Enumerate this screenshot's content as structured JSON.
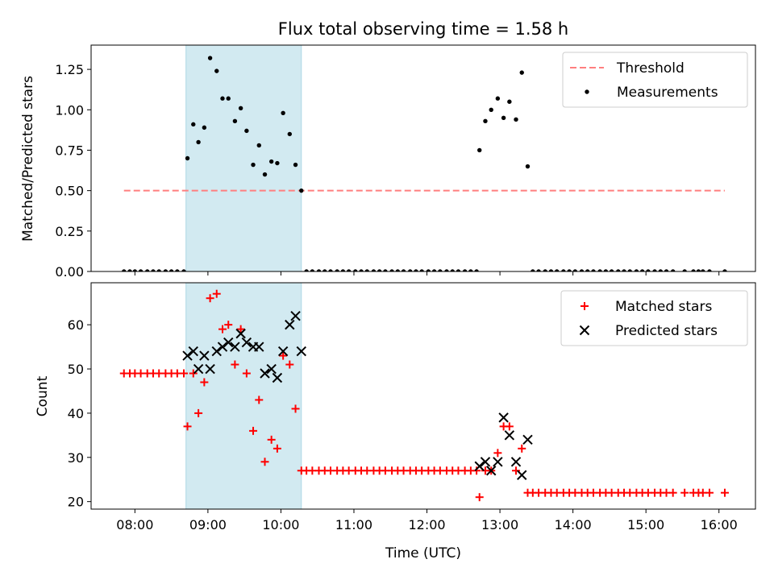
{
  "chart_data": {
    "title": "Flux total observing time = 1.58 h",
    "colors": {
      "threshold": "#ff7f7f",
      "shade": "#add8e6",
      "matched": "#ff0000",
      "predicted": "#000000",
      "measure": "#000000"
    },
    "shaded_interval_hours": [
      8.7,
      10.28
    ],
    "panels": [
      {
        "id": "ratio",
        "type": "scatter",
        "ylabel": "Matched/Predicted stars",
        "xlabel": "",
        "ylim": [
          0,
          1.4
        ],
        "yticks": [
          0.0,
          0.25,
          0.5,
          0.75,
          1.0,
          1.25
        ],
        "ytick_labels": [
          "0.00",
          "0.25",
          "0.50",
          "0.75",
          "1.00",
          "1.25"
        ],
        "legend": [
          "Threshold",
          "Measurements"
        ],
        "threshold": {
          "value": 0.5,
          "x_range": [
            7.85,
            16.08
          ]
        },
        "series": {
          "measurements": {
            "x": [
              7.85,
              7.93,
              8.0,
              8.08,
              8.17,
              8.25,
              8.33,
              8.42,
              8.5,
              8.58,
              8.67,
              8.72,
              8.8,
              8.87,
              8.95,
              9.03,
              9.12,
              9.2,
              9.28,
              9.37,
              9.45,
              9.53,
              9.62,
              9.7,
              9.78,
              9.87,
              9.95,
              10.03,
              10.12,
              10.2,
              10.28,
              10.35,
              10.43,
              10.52,
              10.6,
              10.68,
              10.77,
              10.85,
              10.93,
              11.02,
              11.1,
              11.18,
              11.27,
              11.35,
              11.43,
              11.52,
              11.6,
              11.68,
              11.77,
              11.85,
              11.93,
              12.02,
              12.1,
              12.18,
              12.27,
              12.35,
              12.43,
              12.52,
              12.6,
              12.68,
              12.72,
              12.8,
              12.88,
              12.97,
              13.05,
              13.13,
              13.22,
              13.3,
              13.38,
              13.45,
              13.53,
              13.62,
              13.7,
              13.78,
              13.87,
              13.95,
              14.03,
              14.12,
              14.2,
              14.28,
              14.37,
              14.45,
              14.53,
              14.62,
              14.7,
              14.78,
              14.87,
              14.95,
              15.03,
              15.12,
              15.2,
              15.28,
              15.37,
              15.53,
              15.65,
              15.72,
              15.78,
              15.87,
              16.08
            ],
            "y": [
              0,
              0,
              0,
              0,
              0,
              0,
              0,
              0,
              0,
              0,
              0,
              0.7,
              0.91,
              0.8,
              0.89,
              1.32,
              1.24,
              1.07,
              1.07,
              0.93,
              1.01,
              0.87,
              0.66,
              0.78,
              0.6,
              0.68,
              0.67,
              0.98,
              0.85,
              0.66,
              0.5,
              0,
              0,
              0,
              0,
              0,
              0,
              0,
              0,
              0,
              0,
              0,
              0,
              0,
              0,
              0,
              0,
              0,
              0,
              0,
              0,
              0,
              0,
              0,
              0,
              0,
              0,
              0,
              0,
              0,
              0.75,
              0.93,
              1.0,
              1.07,
              0.95,
              1.05,
              0.94,
              1.23,
              0.65,
              0,
              0,
              0,
              0,
              0,
              0,
              0,
              0,
              0,
              0,
              0,
              0,
              0,
              0,
              0,
              0,
              0,
              0,
              0,
              0,
              0,
              0,
              0,
              0,
              0,
              0,
              0,
              0,
              0,
              0
            ]
          }
        }
      },
      {
        "id": "counts",
        "type": "scatter",
        "ylabel": "Count",
        "xlabel": "Time (UTC)",
        "ylim": [
          18.3,
          69.5
        ],
        "yticks": [
          20,
          30,
          40,
          50,
          60
        ],
        "ytick_labels": [
          "20",
          "30",
          "40",
          "50",
          "60"
        ],
        "legend": [
          "Matched stars",
          "Predicted stars"
        ],
        "series": {
          "matched": {
            "x": [
              7.85,
              7.93,
              8.0,
              8.08,
              8.17,
              8.25,
              8.33,
              8.42,
              8.5,
              8.58,
              8.67,
              8.72,
              8.8,
              8.87,
              8.95,
              9.03,
              9.12,
              9.2,
              9.28,
              9.37,
              9.45,
              9.53,
              9.62,
              9.7,
              9.78,
              9.87,
              9.95,
              10.03,
              10.12,
              10.2,
              10.28,
              10.35,
              10.43,
              10.52,
              10.6,
              10.68,
              10.77,
              10.85,
              10.93,
              11.02,
              11.1,
              11.18,
              11.27,
              11.35,
              11.43,
              11.52,
              11.6,
              11.68,
              11.77,
              11.85,
              11.93,
              12.02,
              12.1,
              12.18,
              12.27,
              12.35,
              12.43,
              12.52,
              12.6,
              12.68,
              12.72,
              12.8,
              12.88,
              12.97,
              13.05,
              13.13,
              13.22,
              13.3,
              13.38,
              13.45,
              13.53,
              13.62,
              13.7,
              13.78,
              13.87,
              13.95,
              14.03,
              14.12,
              14.2,
              14.28,
              14.37,
              14.45,
              14.53,
              14.62,
              14.7,
              14.78,
              14.87,
              14.95,
              15.03,
              15.12,
              15.2,
              15.28,
              15.37,
              15.53,
              15.65,
              15.72,
              15.78,
              15.87,
              16.08
            ],
            "y": [
              49,
              49,
              49,
              49,
              49,
              49,
              49,
              49,
              49,
              49,
              49,
              37,
              49,
              40,
              47,
              66,
              67,
              59,
              60,
              51,
              59,
              49,
              36,
              43,
              29,
              34,
              32,
              53,
              51,
              41,
              27,
              27,
              27,
              27,
              27,
              27,
              27,
              27,
              27,
              27,
              27,
              27,
              27,
              27,
              27,
              27,
              27,
              27,
              27,
              27,
              27,
              27,
              27,
              27,
              27,
              27,
              27,
              27,
              27,
              27,
              21,
              27,
              27,
              31,
              37,
              37,
              27,
              32,
              22,
              22,
              22,
              22,
              22,
              22,
              22,
              22,
              22,
              22,
              22,
              22,
              22,
              22,
              22,
              22,
              22,
              22,
              22,
              22,
              22,
              22,
              22,
              22,
              22,
              22,
              22,
              22,
              22,
              22,
              22
            ]
          },
          "predicted": {
            "x": [
              8.72,
              8.8,
              8.87,
              8.95,
              9.03,
              9.12,
              9.2,
              9.28,
              9.37,
              9.45,
              9.53,
              9.62,
              9.7,
              9.78,
              9.87,
              9.95,
              10.03,
              10.12,
              10.2,
              10.28,
              12.72,
              12.8,
              12.88,
              12.97,
              13.05,
              13.13,
              13.22,
              13.3,
              13.38
            ],
            "y": [
              53,
              54,
              50,
              53,
              50,
              54,
              55,
              56,
              55,
              58,
              56,
              55,
              55,
              49,
              50,
              48,
              54,
              60,
              62,
              54,
              28,
              29,
              27,
              29,
              39,
              35,
              29,
              26,
              34
            ]
          }
        }
      }
    ],
    "xaxis": {
      "range_hours": [
        7.4,
        16.5
      ],
      "tick_hours": [
        8,
        9,
        10,
        11,
        12,
        13,
        14,
        15,
        16
      ],
      "tick_labels": [
        "08:00",
        "09:00",
        "10:00",
        "11:00",
        "12:00",
        "13:00",
        "14:00",
        "15:00",
        "16:00"
      ]
    }
  }
}
